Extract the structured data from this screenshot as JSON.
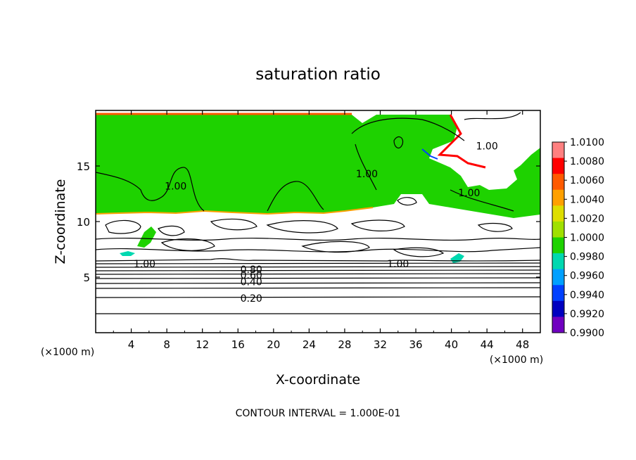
{
  "chart_data": {
    "type": "heatmap",
    "title": "saturation ratio",
    "xlabel": "X-coordinate",
    "ylabel": "Z-coordinate",
    "x_unit_left": "(×1000 m)",
    "x_unit_right": "(×1000 m)",
    "xlim": [
      0,
      50
    ],
    "ylim": [
      0,
      20
    ],
    "x_ticks": [
      4,
      8,
      12,
      16,
      20,
      24,
      28,
      32,
      36,
      40,
      44,
      48
    ],
    "y_ticks": [
      5,
      10,
      15
    ],
    "contour_interval_text": "CONTOUR INTERVAL = 1.000E-01",
    "contour_labels": [
      {
        "text": "1.00",
        "x": 9.0,
        "y": 13.2
      },
      {
        "text": "1.00",
        "x": 30.5,
        "y": 14.3
      },
      {
        "text": "1.00",
        "x": 44.0,
        "y": 16.8
      },
      {
        "text": "1.00",
        "x": 42.0,
        "y": 12.6
      },
      {
        "text": "1.00",
        "x": 5.5,
        "y": 6.2
      },
      {
        "text": "1.00",
        "x": 34.0,
        "y": 6.2
      },
      {
        "text": "0.80",
        "x": 17.5,
        "y": 5.7
      },
      {
        "text": "0.60",
        "x": 17.5,
        "y": 5.2
      },
      {
        "text": "0.40",
        "x": 17.5,
        "y": 4.6
      },
      {
        "text": "0.20",
        "x": 17.5,
        "y": 3.1
      }
    ],
    "colorbar": {
      "min": 0.99,
      "max": 1.01,
      "labels": [
        "1.0100",
        "1.0080",
        "1.0060",
        "1.0040",
        "1.0020",
        "1.0000",
        "0.9980",
        "0.9960",
        "0.9940",
        "0.9920",
        "0.9900"
      ],
      "colors": [
        "#ff8080",
        "#ff0000",
        "#ff5a00",
        "#ffa000",
        "#dede00",
        "#a0e000",
        "#1ed200",
        "#00d8b0",
        "#00a0ff",
        "#0040ff",
        "#0000c0",
        "#7000c0"
      ]
    },
    "colors": {
      "supersaturated_field": "#1ed200",
      "subsaturated_field": "#ffffff",
      "contour": "#000000"
    }
  }
}
